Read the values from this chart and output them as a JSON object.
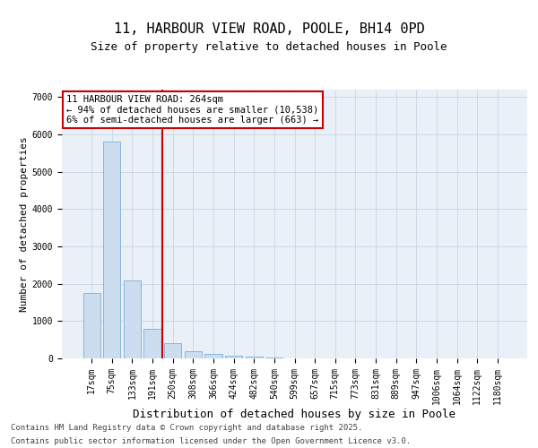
{
  "title_line1": "11, HARBOUR VIEW ROAD, POOLE, BH14 0PD",
  "title_line2": "Size of property relative to detached houses in Poole",
  "xlabel": "Distribution of detached houses by size in Poole",
  "ylabel": "Number of detached properties",
  "categories": [
    "17sqm",
    "75sqm",
    "133sqm",
    "191sqm",
    "250sqm",
    "308sqm",
    "366sqm",
    "424sqm",
    "482sqm",
    "540sqm",
    "599sqm",
    "657sqm",
    "715sqm",
    "773sqm",
    "831sqm",
    "889sqm",
    "947sqm",
    "1006sqm",
    "1064sqm",
    "1122sqm",
    "1180sqm"
  ],
  "values": [
    1750,
    5800,
    2100,
    800,
    400,
    195,
    130,
    65,
    38,
    14,
    5,
    2,
    1,
    0,
    0,
    0,
    0,
    0,
    0,
    0,
    0
  ],
  "bar_color": "#ccddf0",
  "bar_edge_color": "#7aaed4",
  "vline_x": 3.5,
  "vline_color": "#cc0000",
  "annotation_title": "11 HARBOUR VIEW ROAD: 264sqm",
  "annotation_line2": "← 94% of detached houses are smaller (10,538)",
  "annotation_line3": "6% of semi-detached houses are larger (663) →",
  "annotation_box_facecolor": "#ffffff",
  "annotation_box_edgecolor": "#cc0000",
  "ylim": [
    0,
    7200
  ],
  "yticks": [
    0,
    1000,
    2000,
    3000,
    4000,
    5000,
    6000,
    7000
  ],
  "bg_color": "#eaf0f8",
  "grid_color": "#c0cfe0",
  "footer_line1": "Contains HM Land Registry data © Crown copyright and database right 2025.",
  "footer_line2": "Contains public sector information licensed under the Open Government Licence v3.0.",
  "title_fontsize": 11,
  "subtitle_fontsize": 9,
  "tick_fontsize": 7,
  "ylabel_fontsize": 8,
  "xlabel_fontsize": 9,
  "annotation_fontsize": 7.5,
  "footer_fontsize": 6.5
}
